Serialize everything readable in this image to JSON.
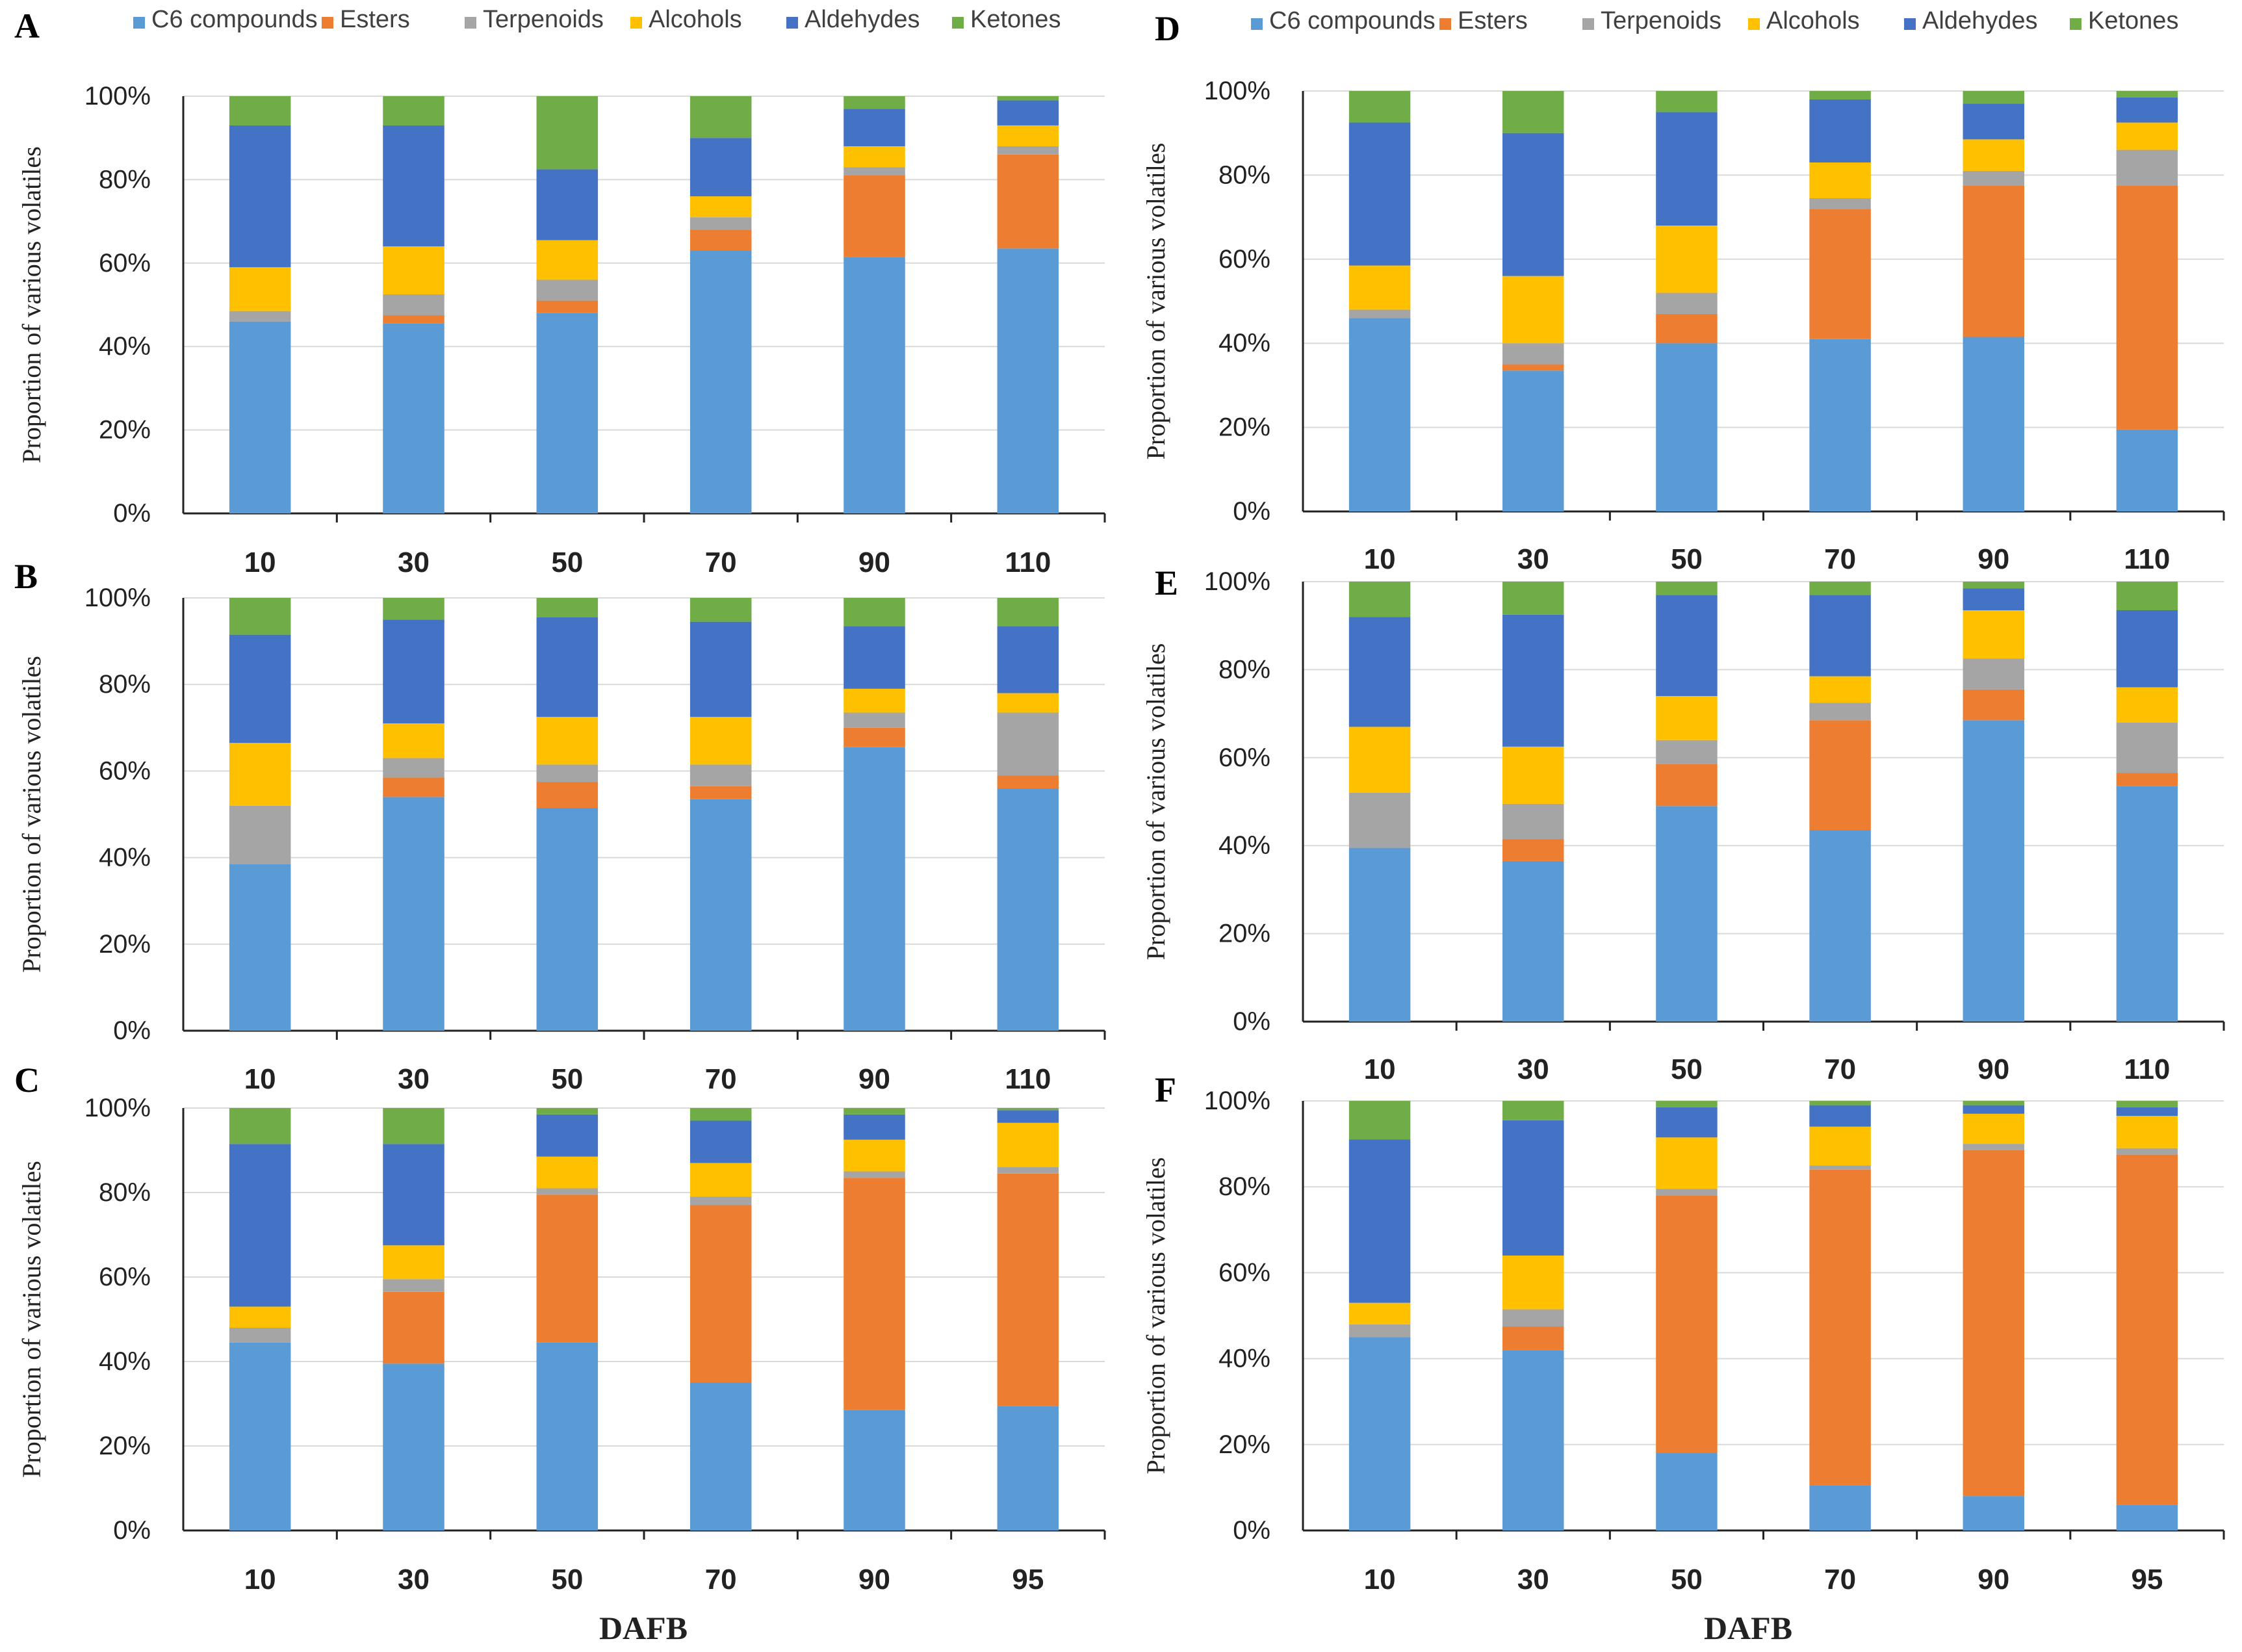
{
  "figure": {
    "legend": [
      {
        "name": "C6 compounds",
        "color": "#5B9BD5"
      },
      {
        "name": "Esters",
        "color": "#ED7D31"
      },
      {
        "name": "Terpenoids",
        "color": "#A5A5A5"
      },
      {
        "name": "Alcohols",
        "color": "#FFC000"
      },
      {
        "name": "Aldehydes",
        "color": "#4472C4"
      },
      {
        "name": "Ketones",
        "color": "#70AD47"
      }
    ],
    "xlabel_bottom": "DAFB"
  },
  "chart_data": [
    {
      "panel": "A",
      "type": "bar",
      "stacked": true,
      "ylabel": "Proportion of various volatiles",
      "yticks": [
        "0%",
        "20%",
        "40%",
        "60%",
        "80%",
        "100%"
      ],
      "ylim": [
        0,
        100
      ],
      "categories": [
        "10",
        "30",
        "50",
        "70",
        "90",
        "110"
      ],
      "series": [
        {
          "name": "C6 compounds",
          "values": [
            46,
            45.5,
            48,
            63,
            61.5,
            63.5
          ]
        },
        {
          "name": "Esters",
          "values": [
            0,
            2,
            3,
            5,
            19.5,
            22.5
          ]
        },
        {
          "name": "Terpenoids",
          "values": [
            2.5,
            5,
            5,
            3,
            2,
            2
          ]
        },
        {
          "name": "Alcohols",
          "values": [
            10.5,
            11.5,
            9.5,
            5,
            5,
            5
          ]
        },
        {
          "name": "Aldehydes",
          "values": [
            34,
            29,
            17,
            14,
            9,
            6
          ]
        },
        {
          "name": "Ketones",
          "values": [
            7,
            7,
            17.5,
            10,
            3,
            1
          ]
        }
      ]
    },
    {
      "panel": "B",
      "type": "bar",
      "stacked": true,
      "ylabel": "Proportion of various volatiles",
      "yticks": [
        "0%",
        "20%",
        "40%",
        "60%",
        "80%",
        "100%"
      ],
      "ylim": [
        0,
        100
      ],
      "categories": [
        "10",
        "30",
        "50",
        "70",
        "90",
        "110"
      ],
      "series": [
        {
          "name": "C6 compounds",
          "values": [
            38.5,
            54,
            51.5,
            53.5,
            65.5,
            56
          ]
        },
        {
          "name": "Esters",
          "values": [
            0,
            4.5,
            6,
            3,
            4.5,
            3
          ]
        },
        {
          "name": "Terpenoids",
          "values": [
            13.5,
            4.5,
            4,
            5,
            3.5,
            14.5
          ]
        },
        {
          "name": "Alcohols",
          "values": [
            14.5,
            8,
            11,
            11,
            5.5,
            4.5
          ]
        },
        {
          "name": "Aldehydes",
          "values": [
            25,
            24,
            23,
            22,
            14.5,
            15.5
          ]
        },
        {
          "name": "Ketones",
          "values": [
            8.5,
            5,
            4.5,
            5.5,
            6.5,
            6.5
          ]
        }
      ]
    },
    {
      "panel": "C",
      "type": "bar",
      "stacked": true,
      "ylabel": "Proportion of various volatiles",
      "xlabel": "DAFB",
      "yticks": [
        "0%",
        "20%",
        "40%",
        "60%",
        "80%",
        "100%"
      ],
      "ylim": [
        0,
        100
      ],
      "categories": [
        "10",
        "30",
        "50",
        "70",
        "90",
        "95"
      ],
      "series": [
        {
          "name": "C6 compounds",
          "values": [
            44.5,
            39.5,
            44.5,
            35,
            28.5,
            29.5
          ]
        },
        {
          "name": "Esters",
          "values": [
            0,
            17,
            35,
            42,
            55,
            55
          ]
        },
        {
          "name": "Terpenoids",
          "values": [
            3.5,
            3,
            1.5,
            2,
            1.5,
            1.5
          ]
        },
        {
          "name": "Alcohols",
          "values": [
            5,
            8,
            7.5,
            8,
            7.5,
            10.5
          ]
        },
        {
          "name": "Aldehydes",
          "values": [
            38.5,
            24,
            10,
            10,
            6,
            3
          ]
        },
        {
          "name": "Ketones",
          "values": [
            8.5,
            8.5,
            1.5,
            3,
            1.5,
            0.5
          ]
        }
      ]
    },
    {
      "panel": "D",
      "type": "bar",
      "stacked": true,
      "ylabel": "Proportion of various volatiles",
      "yticks": [
        "0%",
        "20%",
        "40%",
        "60%",
        "80%",
        "100%"
      ],
      "ylim": [
        0,
        100
      ],
      "categories": [
        "10",
        "30",
        "50",
        "70",
        "90",
        "110"
      ],
      "series": [
        {
          "name": "C6 compounds",
          "values": [
            46,
            33.5,
            40,
            41,
            41.5,
            19.5
          ]
        },
        {
          "name": "Esters",
          "values": [
            0,
            1.5,
            7,
            31,
            36,
            58
          ]
        },
        {
          "name": "Terpenoids",
          "values": [
            2,
            5,
            5,
            2.5,
            3.5,
            8.5
          ]
        },
        {
          "name": "Alcohols",
          "values": [
            10.5,
            16,
            16,
            8.5,
            7.5,
            6.5
          ]
        },
        {
          "name": "Aldehydes",
          "values": [
            34,
            34,
            27,
            15,
            8.5,
            6
          ]
        },
        {
          "name": "Ketones",
          "values": [
            7.5,
            10,
            5,
            2,
            3,
            1.5
          ]
        }
      ]
    },
    {
      "panel": "E",
      "type": "bar",
      "stacked": true,
      "ylabel": "Proportion of various volatiles",
      "yticks": [
        "0%",
        "20%",
        "40%",
        "60%",
        "80%",
        "100%"
      ],
      "ylim": [
        0,
        100
      ],
      "categories": [
        "10",
        "30",
        "50",
        "70",
        "90",
        "110"
      ],
      "series": [
        {
          "name": "C6 compounds",
          "values": [
            39.5,
            36.5,
            49,
            43.5,
            68.5,
            53.5
          ]
        },
        {
          "name": "Esters",
          "values": [
            0,
            5,
            9.5,
            25,
            7,
            3
          ]
        },
        {
          "name": "Terpenoids",
          "values": [
            12.5,
            8,
            5.5,
            4,
            7,
            11.5
          ]
        },
        {
          "name": "Alcohols",
          "values": [
            15,
            13,
            10,
            6,
            11,
            8
          ]
        },
        {
          "name": "Aldehydes",
          "values": [
            25,
            30,
            23,
            18.5,
            5,
            17.5
          ]
        },
        {
          "name": "Ketones",
          "values": [
            8,
            7.5,
            3,
            3,
            1.5,
            6.5
          ]
        }
      ]
    },
    {
      "panel": "F",
      "type": "bar",
      "stacked": true,
      "ylabel": "Proportion of various volatiles",
      "xlabel": "DAFB",
      "yticks": [
        "0%",
        "20%",
        "40%",
        "60%",
        "80%",
        "100%"
      ],
      "ylim": [
        0,
        100
      ],
      "categories": [
        "10",
        "30",
        "50",
        "70",
        "90",
        "95"
      ],
      "series": [
        {
          "name": "C6 compounds",
          "values": [
            45,
            42,
            18,
            10.5,
            8,
            6
          ]
        },
        {
          "name": "Esters",
          "values": [
            0,
            5.5,
            60,
            73.5,
            80.5,
            81.5
          ]
        },
        {
          "name": "Terpenoids",
          "values": [
            3,
            4,
            1.5,
            1,
            1.5,
            1.5
          ]
        },
        {
          "name": "Alcohols",
          "values": [
            5,
            12.5,
            12,
            9,
            7,
            7.5
          ]
        },
        {
          "name": "Aldehydes",
          "values": [
            38,
            31.5,
            7,
            5,
            2,
            2
          ]
        },
        {
          "name": "Ketones",
          "values": [
            9,
            4.5,
            1.5,
            1,
            1,
            1.5
          ]
        }
      ]
    }
  ]
}
